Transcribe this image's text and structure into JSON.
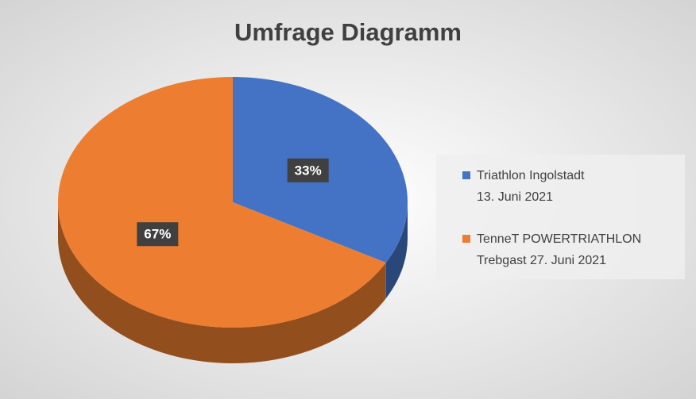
{
  "chart_data": {
    "type": "pie",
    "title": "Umfrage Diagramm",
    "categories": [
      "Triathlon Ingolstadt\n13. Juni 2021",
      "TenneT POWERTRIATHLON\nTrebgast 27. Juni 2021"
    ],
    "values": [
      33,
      67
    ],
    "value_labels": [
      "33%",
      "67%"
    ],
    "colors": [
      "#4472c4",
      "#ed7d31"
    ],
    "legend": "right"
  }
}
